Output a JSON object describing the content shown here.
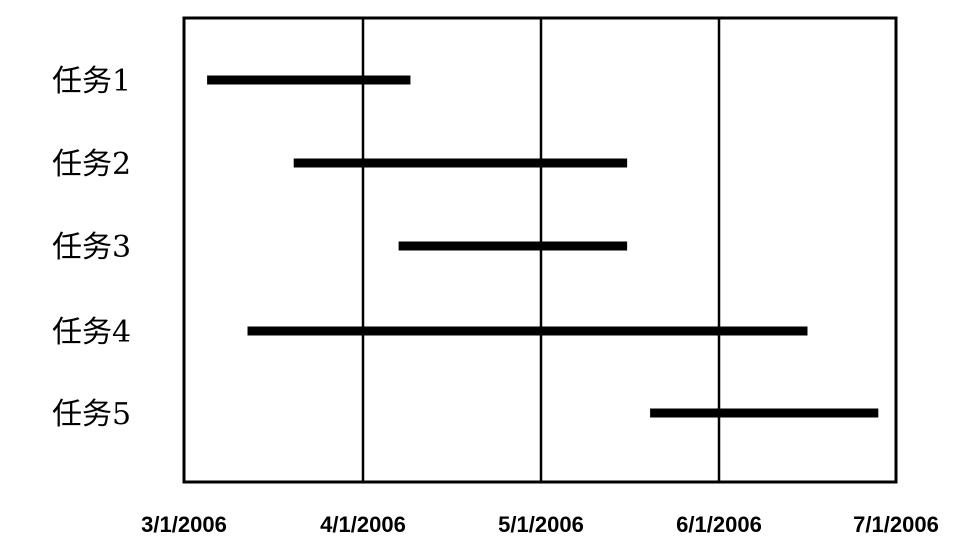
{
  "chart_data": {
    "type": "gantt",
    "title": "",
    "xlabel": "",
    "ylabel": "",
    "x_ticks": [
      "3/1/2006",
      "4/1/2006",
      "5/1/2006",
      "6/1/2006",
      "7/1/2006"
    ],
    "xlim": [
      "3/1/2006",
      "7/1/2006"
    ],
    "grid": "vertical",
    "colors": {
      "bar": "#000000",
      "grid": "#000000",
      "frame": "#000000"
    },
    "tasks": [
      {
        "name": "任务1",
        "start": "3/5/2006",
        "end": "4/9/2006"
      },
      {
        "name": "任务2",
        "start": "3/20/2006",
        "end": "5/16/2006"
      },
      {
        "name": "任务3",
        "start": "4/7/2006",
        "end": "5/16/2006"
      },
      {
        "name": "任务4",
        "start": "3/12/2006",
        "end": "6/16/2006"
      },
      {
        "name": "任务5",
        "start": "5/20/2006",
        "end": "6/28/2006"
      }
    ]
  }
}
